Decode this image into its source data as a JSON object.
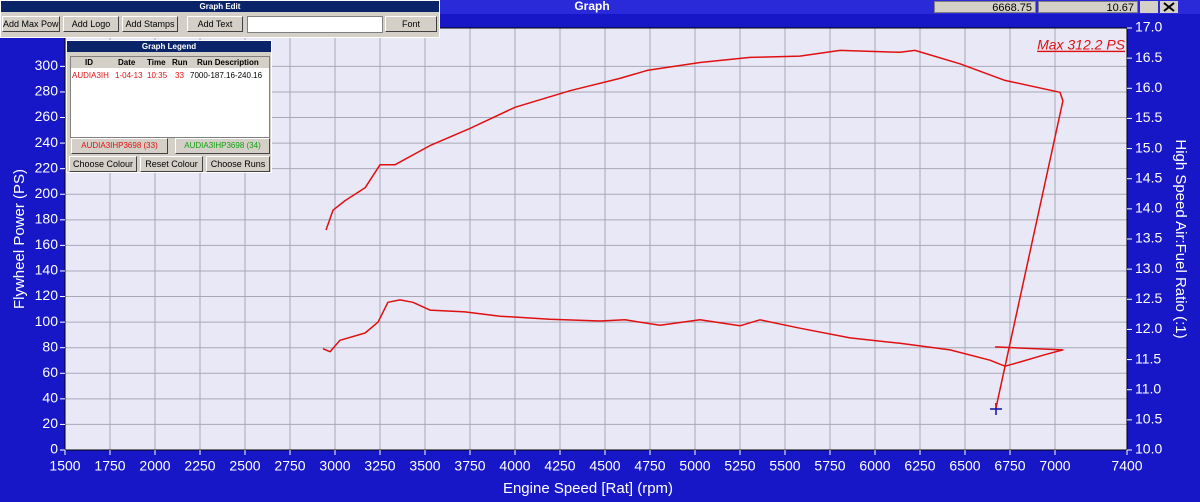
{
  "window": {
    "title": "Graph",
    "readouts": [
      "6668.75",
      "10.67"
    ]
  },
  "graph_edit": {
    "title": "Graph Edit",
    "buttons": [
      "Add Max Powe",
      "Add Logo",
      "Add Stamps",
      "Add Text",
      "Font"
    ]
  },
  "graph_legend": {
    "title": "Graph Legend",
    "columns": [
      "ID",
      "Date",
      "Time",
      "Run",
      "Run Description"
    ],
    "rows": [
      [
        "AUDIA3IH",
        "1-04-13",
        "10:35",
        "33",
        "7000-187.16-240.16"
      ]
    ],
    "runs": [
      "AUDIA3IHP3698 (33)",
      "AUDIA3IHP3698 (34)"
    ],
    "buttons": [
      "Choose Colour",
      "Reset Colour",
      "Choose Runs"
    ]
  },
  "chart_data": {
    "type": "line",
    "x_label": "Engine Speed [Rat] (rpm)",
    "y_label": "Flywheel Power (PS)",
    "y2_label": "High Speed Air:Fuel Ratio (:1)",
    "annotation": "Max 312.2 PS",
    "grid": true,
    "xlim": [
      1500,
      7400
    ],
    "xticks": [
      1500,
      1750,
      2000,
      2250,
      2500,
      2750,
      3000,
      3250,
      3500,
      3750,
      4000,
      4250,
      4500,
      4750,
      5000,
      5250,
      5500,
      5750,
      6000,
      6250,
      6500,
      6750,
      7000,
      7400
    ],
    "ylim": [
      0,
      330
    ],
    "yticks": [
      0,
      20,
      40,
      60,
      80,
      100,
      120,
      140,
      160,
      180,
      200,
      220,
      240,
      260,
      280,
      300
    ],
    "y2lim": [
      10,
      17
    ],
    "y2ticks": [
      {
        "value": 10,
        "label": "10.0"
      },
      10.5,
      {
        "value": 11,
        "label": "11.0"
      },
      11.5,
      {
        "value": 12,
        "label": "12.0"
      },
      12.5,
      {
        "value": 13,
        "label": "13.0"
      },
      13.5,
      {
        "value": 14,
        "label": "14.0"
      },
      14.5,
      {
        "value": 15,
        "label": "15.0"
      },
      15.5,
      {
        "value": 16,
        "label": "16.0"
      },
      16.5,
      {
        "value": 17,
        "label": "17.0"
      }
    ],
    "series": [
      {
        "color": "#e01010",
        "axis": "y",
        "x": [
          2950,
          2989,
          3056,
          3167,
          3250,
          3333,
          3528,
          3750,
          4000,
          4306,
          4583,
          4739,
          5028,
          5306,
          5583,
          5806,
          6139,
          6222,
          6472,
          6722,
          7028,
          7044,
          6672
        ],
        "values": [
          172,
          187.5,
          195,
          205,
          223,
          223,
          238,
          251.5,
          268,
          281,
          290.6,
          297,
          303,
          307,
          308,
          312.5,
          311,
          312.5,
          302,
          289,
          279.7,
          273,
          33
        ]
      },
      {
        "color": "#e01010",
        "axis": "y2",
        "x": [
          2933,
          2972,
          3028,
          3167,
          3239,
          3294,
          3361,
          3433,
          3528,
          3722,
          3917,
          4194,
          4472,
          4611,
          4806,
          5028,
          5250,
          5361,
          5583,
          5861,
          6139,
          6417,
          6639,
          6722,
          6806,
          6944,
          7044,
          6667
        ],
        "values": [
          11.68,
          11.63,
          11.82,
          11.94,
          12.12,
          12.45,
          12.49,
          12.45,
          12.32,
          12.29,
          12.22,
          12.17,
          12.14,
          12.16,
          12.07,
          12.16,
          12.06,
          12.16,
          12.02,
          11.86,
          11.77,
          11.66,
          11.49,
          11.39,
          11.46,
          11.58,
          11.66,
          11.71
        ]
      }
    ]
  }
}
